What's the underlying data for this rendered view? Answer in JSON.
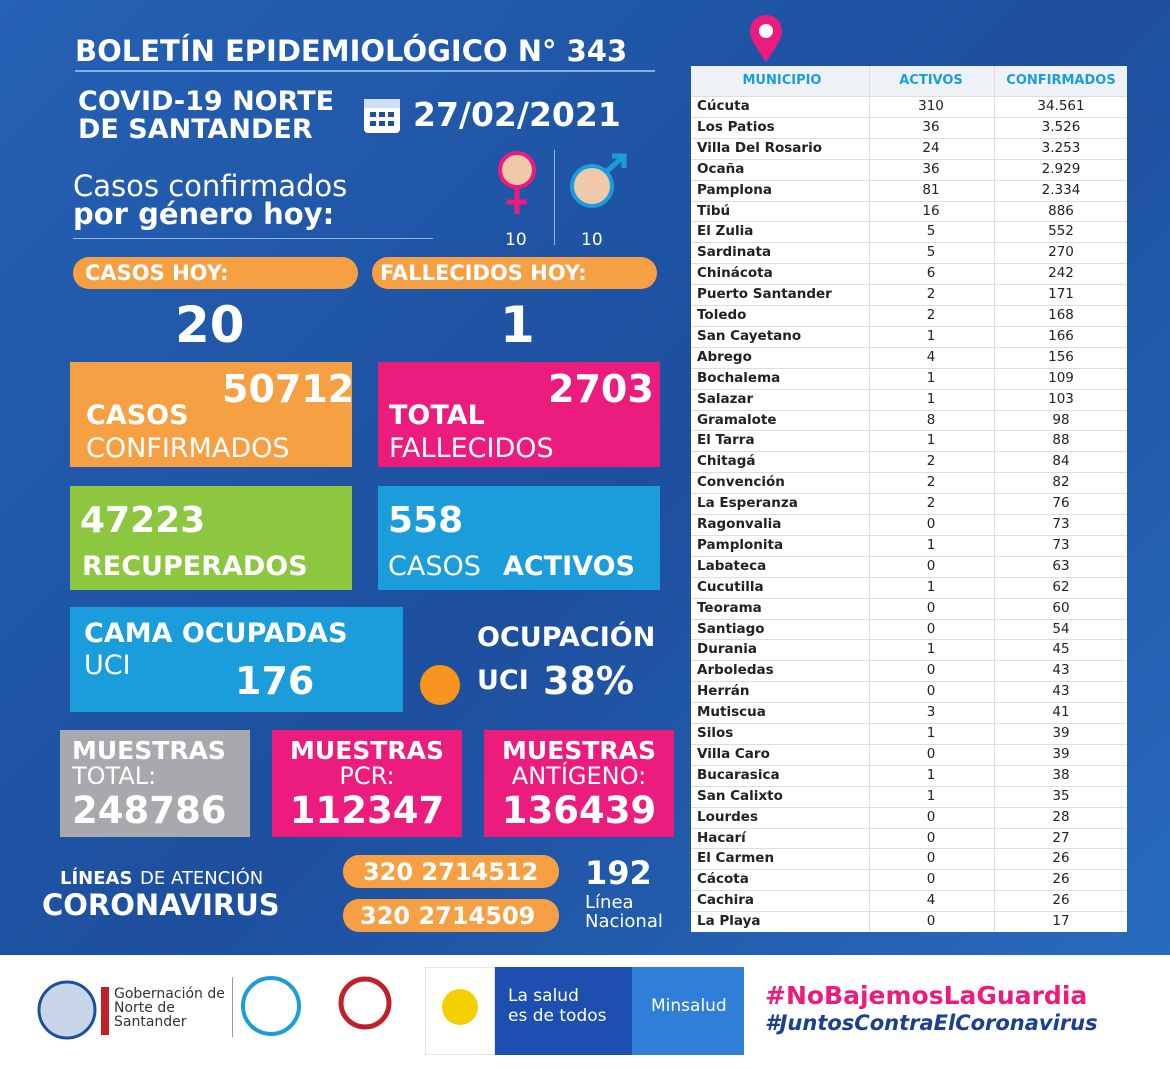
{
  "header": {
    "title": "BOLETÍN EPIDEMIOLÓGICO N° 343",
    "subtitle_1": "COVID-19 NORTE",
    "subtitle_2": "DE SANTANDER",
    "date": "27/02/2021"
  },
  "gender": {
    "label_1": "Casos confirmados",
    "label_2": "por género hoy:",
    "female": "10",
    "male": "10"
  },
  "today": {
    "cases_label": "CASOS HOY:",
    "cases": "20",
    "deaths_label": "FALLECIDOS HOY:",
    "deaths": "1"
  },
  "confirmed": {
    "value": "50712",
    "label_1": "CASOS",
    "label_2": "CONFIRMADOS"
  },
  "deaths": {
    "value": "2703",
    "label_1": "TOTAL",
    "label_2": "FALLECIDOS"
  },
  "recovered": {
    "value": "47223",
    "label": "RECUPERADOS"
  },
  "active": {
    "value": "558",
    "label_1": "CASOS",
    "label_2": "ACTIVOS"
  },
  "icu_beds": {
    "label_1": "CAMA OCUPADAS",
    "label_2": "UCI",
    "value": "176"
  },
  "icu_occupancy": {
    "label_1": "OCUPACIÓN",
    "label_2": "UCI",
    "value": "38%"
  },
  "samples": [
    {
      "label_1": "MUESTRAS",
      "label_2": "TOTAL:",
      "value": "248786"
    },
    {
      "label_1": "MUESTRAS",
      "label_2": "PCR:",
      "value": "112347"
    },
    {
      "label_1": "MUESTRAS",
      "label_2": "ANTÍGENO:",
      "value": "136439"
    }
  ],
  "hotline": {
    "label_1": "LÍNEAS",
    "label_2": "DE ATENCIÓN",
    "label_3": "CORONAVIRUS",
    "phones": [
      "320 2714512",
      "320 2714509"
    ],
    "national": "192",
    "national_label_1": "Línea",
    "national_label_2": "Nacional"
  },
  "table": {
    "columns": [
      "MUNICIPIO",
      "ACTIVOS",
      "CONFIRMADOS"
    ],
    "rows": [
      [
        "Cúcuta",
        "310",
        "34.561"
      ],
      [
        "Los Patios",
        "36",
        "3.526"
      ],
      [
        "Villa Del Rosario",
        "24",
        "3.253"
      ],
      [
        "Ocaña",
        "36",
        "2.929"
      ],
      [
        "Pamplona",
        "81",
        "2.334"
      ],
      [
        "Tibú",
        "16",
        "886"
      ],
      [
        "El Zulia",
        "5",
        "552"
      ],
      [
        "Sardinata",
        "5",
        "270"
      ],
      [
        "Chinácota",
        "6",
        "242"
      ],
      [
        "Puerto Santander",
        "2",
        "171"
      ],
      [
        "Toledo",
        "2",
        "168"
      ],
      [
        "San Cayetano",
        "1",
        "166"
      ],
      [
        "Abrego",
        "4",
        "156"
      ],
      [
        "Bochalema",
        "1",
        "109"
      ],
      [
        "Salazar",
        "1",
        "103"
      ],
      [
        "Gramalote",
        "8",
        "98"
      ],
      [
        "El Tarra",
        "1",
        "88"
      ],
      [
        "Chitagá",
        "2",
        "84"
      ],
      [
        "Convención",
        "2",
        "82"
      ],
      [
        "La Esperanza",
        "2",
        "76"
      ],
      [
        "Ragonvalia",
        "0",
        "73"
      ],
      [
        "Pamplonita",
        "1",
        "73"
      ],
      [
        "Labateca",
        "0",
        "63"
      ],
      [
        "Cucutilla",
        "1",
        "62"
      ],
      [
        "Teorama",
        "0",
        "60"
      ],
      [
        "Santiago",
        "0",
        "54"
      ],
      [
        "Durania",
        "1",
        "45"
      ],
      [
        "Arboledas",
        "0",
        "43"
      ],
      [
        "Herrán",
        "0",
        "43"
      ],
      [
        "Mutiscua",
        "3",
        "41"
      ],
      [
        "Silos",
        "1",
        "39"
      ],
      [
        "Villa Caro",
        "0",
        "39"
      ],
      [
        "Bucarasica",
        "1",
        "38"
      ],
      [
        "San Calixto",
        "1",
        "35"
      ],
      [
        "Lourdes",
        "0",
        "28"
      ],
      [
        "Hacarí",
        "0",
        "27"
      ],
      [
        "El Carmen",
        "0",
        "26"
      ],
      [
        "Cácota",
        "0",
        "26"
      ],
      [
        "Cachira",
        "4",
        "26"
      ],
      [
        "La Playa",
        "0",
        "17"
      ]
    ]
  },
  "footer": {
    "gov_1": "Gobernación de",
    "gov_2": "Norte de",
    "gov_3": "Santander",
    "health_1": "La salud",
    "health_2": "es de todos",
    "ministry": "Minsalud",
    "hashtag_1": "#NoBajemosLaGuardia",
    "hashtag_2": "#JuntosContraElCoronavirus"
  }
}
